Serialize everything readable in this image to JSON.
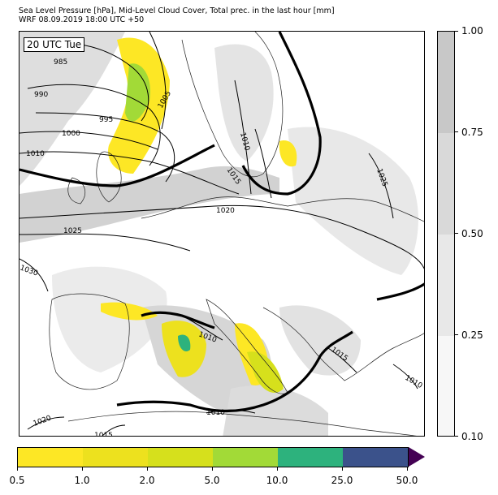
{
  "header": {
    "title": "Sea Level Pressure [hPa], Mid-Level Cloud Cover, Total prec. in the last hour [mm]",
    "subtitle": "WRF 08.09.2019 18:00 UTC +50"
  },
  "map": {
    "time_label": "20 UTC Tue",
    "isobar_labels": [
      "985",
      "990",
      "995",
      "1000",
      "1005",
      "1010",
      "1010",
      "1015",
      "1020",
      "1025",
      "1030",
      "1010",
      "1025",
      "1015",
      "1010",
      "1020",
      "1010",
      "1015"
    ]
  },
  "cloud_colorbar": {
    "ticks": [
      "0.10",
      "0.25",
      "0.50",
      "0.75",
      "1.00"
    ],
    "colors": [
      "#f7f7f7",
      "#e8e8e8",
      "#d9d9d9",
      "#c8c8c8"
    ]
  },
  "precip_colorbar": {
    "ticks": [
      "0.5",
      "1.0",
      "2.0",
      "5.0",
      "10.0",
      "25.0",
      "50.0"
    ],
    "colors": [
      "#fde725",
      "#ede11e",
      "#d6e01c",
      "#a2da37",
      "#2db27d",
      "#3b528b",
      "#440154"
    ]
  }
}
